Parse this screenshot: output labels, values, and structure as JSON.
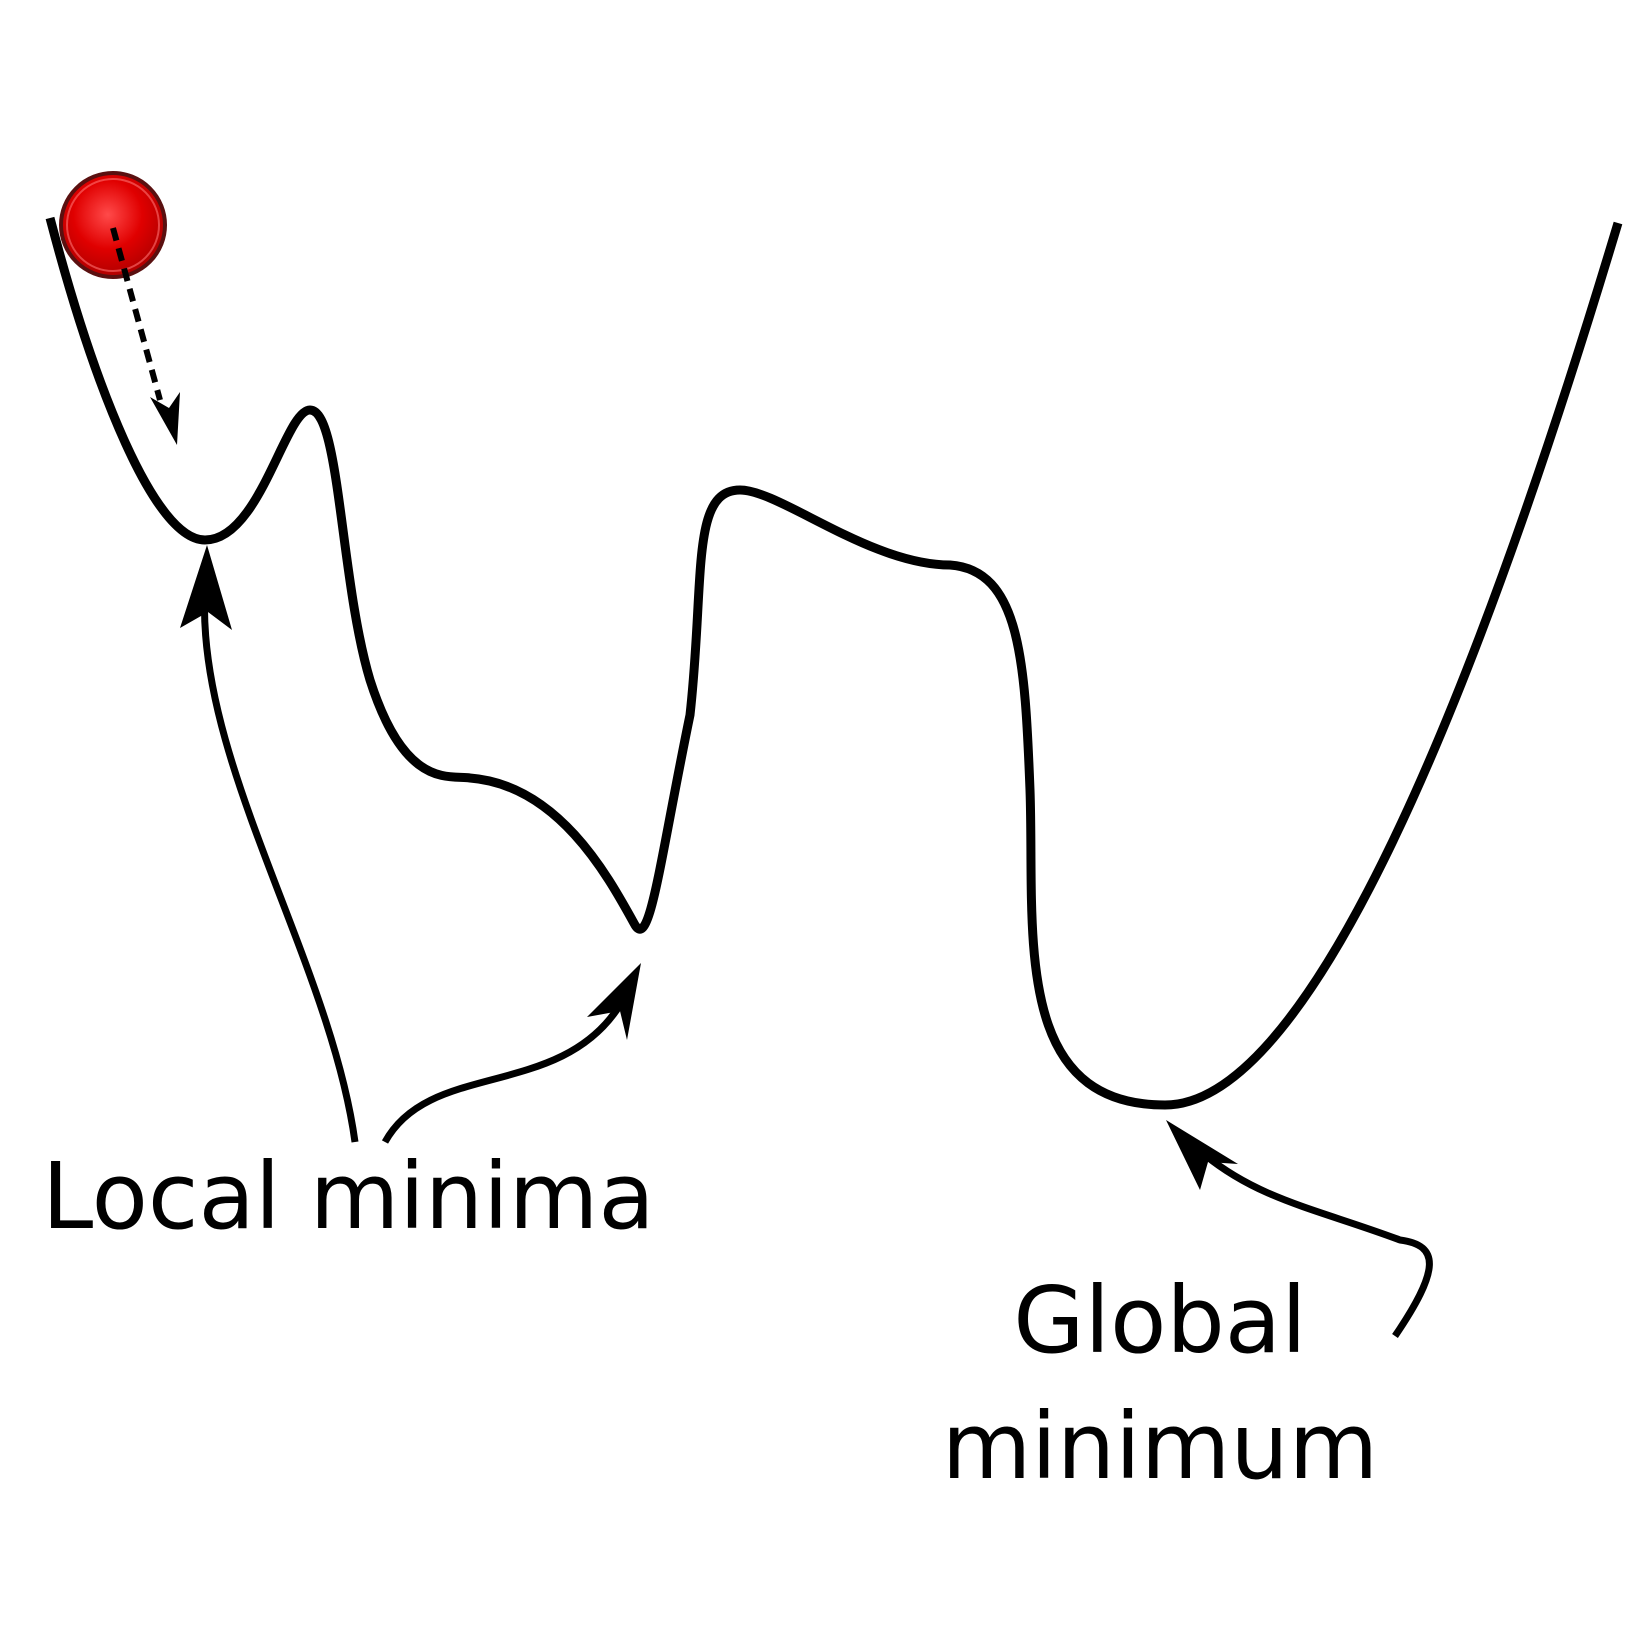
{
  "diagram": {
    "labels": {
      "local": "Local minima",
      "global_line1": "Global",
      "global_line2": "minimum"
    },
    "colors": {
      "stroke": "#000000",
      "ball": "#e60000",
      "ball_highlight": "#ff5a5a",
      "ball_outline": "#5a1010",
      "background": "#ffffff"
    }
  }
}
